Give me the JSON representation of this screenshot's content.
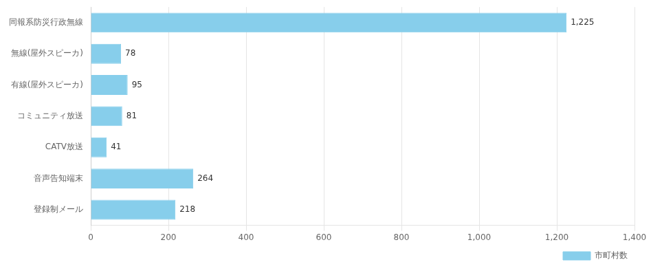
{
  "chart_data": {
    "type": "bar",
    "orientation": "horizontal",
    "categories": [
      "登録制メール",
      "音声告知端末",
      "CATV放送",
      "コミュニティ放送",
      "有線(屋外スピーカ)",
      "無線(屋外スピーカ)",
      "同報系防災行政無線"
    ],
    "series": [
      {
        "name": "市町村数",
        "color": "#87CEEB",
        "values": [
          218,
          264,
          41,
          81,
          95,
          78,
          1225
        ],
        "value_labels": [
          "218",
          "264",
          "41",
          "81",
          "95",
          "78",
          "1,225"
        ]
      }
    ],
    "xlim": [
      0,
      1400
    ],
    "xticks": [
      0,
      200,
      400,
      600,
      800,
      {
        "value": 1000,
        "label": "1,000"
      },
      {
        "value": 1200,
        "label": "1,200"
      },
      {
        "value": 1400,
        "label": "1,400"
      }
    ],
    "grid": true,
    "legend": "lower right",
    "data_labels": true
  }
}
